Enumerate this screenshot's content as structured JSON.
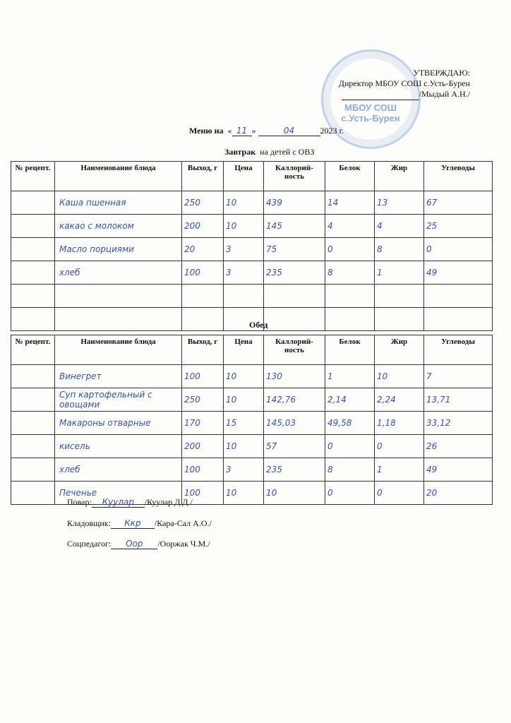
{
  "approval": {
    "line1": "УТВЕРЖДАЮ:",
    "line2": "Директор МБОУ СОШ с.Усть-Бурен",
    "line3": "/Мыдый А.Н./",
    "stamp_text": "МБОУ СОШ с.Усть-Бурен"
  },
  "menu": {
    "label": "Меню на",
    "day": "11",
    "month": "04",
    "year": "2023 г.",
    "open_q": "«",
    "close_q": "»"
  },
  "breakfast": {
    "title": "Завтрак",
    "subtitle": "на детей с ОВЗ",
    "columns": [
      "№ рецепт.",
      "Наименование блюда",
      "Выход, г",
      "Цена",
      "Каллорий-ность",
      "Белок",
      "Жир",
      "Углеводы"
    ],
    "rows": [
      [
        "",
        "Каша пшенная",
        "250",
        "10",
        "439",
        "14",
        "13",
        "67"
      ],
      [
        "",
        "какао с молоком",
        "200",
        "10",
        "145",
        "4",
        "4",
        "25"
      ],
      [
        "",
        "Масло порциями",
        "20",
        "3",
        "75",
        "0",
        "8",
        "0"
      ],
      [
        "",
        "хлеб",
        "100",
        "3",
        "235",
        "8",
        "1",
        "49"
      ],
      [
        "",
        "",
        "",
        "",
        "",
        "",
        "",
        ""
      ],
      [
        "",
        "",
        "",
        "",
        "",
        "",
        "",
        ""
      ]
    ]
  },
  "lunch": {
    "title": "Обед",
    "columns": [
      "№ рецепт.",
      "Наименование блюда",
      "Выход, г",
      "Цена",
      "Каллорий-ность",
      "Белок",
      "Жир",
      "Углеводы"
    ],
    "rows": [
      [
        "",
        "Винегрет",
        "100",
        "10",
        "130",
        "1",
        "10",
        "7"
      ],
      [
        "",
        "Суп картофельный с овощами",
        "250",
        "10",
        "142,76",
        "2,14",
        "2,24",
        "13,71"
      ],
      [
        "",
        "Макароны отварные",
        "170",
        "15",
        "145,03",
        "49,58",
        "1,18",
        "33,12"
      ],
      [
        "",
        "кисель",
        "200",
        "10",
        "57",
        "0",
        "0",
        "26"
      ],
      [
        "",
        "хлеб",
        "100",
        "3",
        "235",
        "8",
        "1",
        "49"
      ],
      [
        "",
        "Печенье",
        "100",
        "10",
        "10",
        "0",
        "0",
        "20"
      ]
    ]
  },
  "signatures": [
    {
      "role": "Повар:",
      "sign": "Куулар",
      "name": "/Куулар Д.Д./"
    },
    {
      "role": "Кладовщик:",
      "sign": "Ккр",
      "name": "/Кара-Сал А.О./"
    },
    {
      "role": "Соцпедагог:",
      "sign": "Оор",
      "name": "/Ооржак Ч.М./"
    }
  ],
  "colors": {
    "ink": "#3b4fa8",
    "stamp": "#5a78c8"
  }
}
